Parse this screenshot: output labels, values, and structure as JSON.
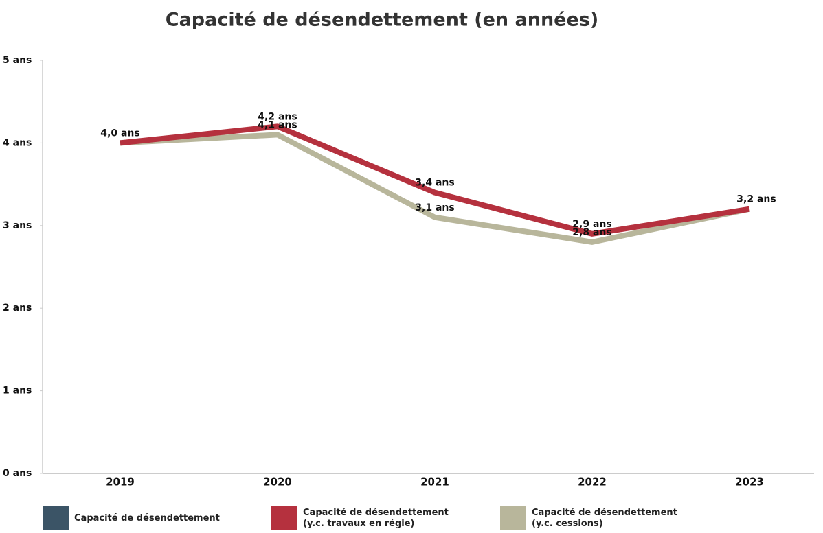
{
  "chart_data": {
    "type": "line",
    "title": "Capacité de désendettement (en années)",
    "categories": [
      "2019",
      "2020",
      "2021",
      "2022",
      "2023"
    ],
    "ylim": [
      0,
      5
    ],
    "yticks": [
      {
        "value": 0,
        "label": "0 ans"
      },
      {
        "value": 1,
        "label": "1 ans"
      },
      {
        "value": 2,
        "label": "2 ans"
      },
      {
        "value": 3,
        "label": "3 ans"
      },
      {
        "value": 4,
        "label": "4 ans"
      },
      {
        "value": 5,
        "label": "5 ans"
      }
    ],
    "grid": false,
    "legend": "bottom",
    "series": [
      {
        "name": "Capacité de désendettement",
        "color": "#3b5466",
        "values": [
          null,
          null,
          null,
          null,
          null
        ]
      },
      {
        "name": "Capacité de désendettement (y.c. travaux en régie)",
        "color": "#b5313e",
        "values": [
          4.0,
          4.2,
          3.4,
          2.9,
          3.2
        ],
        "value_labels": [
          "4,0 ans",
          "4,2 ans",
          "3,4 ans",
          "2,9 ans",
          "3,2 ans"
        ]
      },
      {
        "name": "Capacité de désendettement (y.c. cessions)",
        "color": "#b8b69b",
        "values": [
          4.0,
          4.1,
          3.1,
          2.8,
          3.2
        ],
        "value_labels": [
          null,
          "4,1 ans",
          "3,1 ans",
          "2,8 ans",
          null
        ]
      }
    ]
  }
}
